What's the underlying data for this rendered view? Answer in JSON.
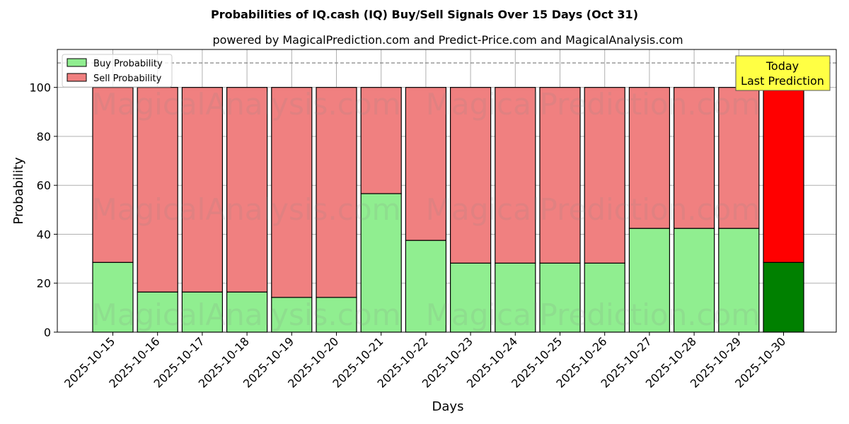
{
  "chart_data": {
    "type": "bar",
    "stacked": true,
    "title": "Probabilities of IQ.cash (IQ) Buy/Sell Signals Over 15 Days (Oct 31)",
    "subtitle": "powered by MagicalPrediction.com and Predict-Price.com and MagicalAnalysis.com",
    "xlabel": "Days",
    "ylabel": "Probability",
    "ylim": [
      0,
      115.5
    ],
    "yticks": [
      0,
      20,
      40,
      60,
      80,
      100
    ],
    "reference_line": 110,
    "grid": true,
    "legend_placement": "top-left",
    "categories": [
      "2025-10-15",
      "2025-10-16",
      "2025-10-17",
      "2025-10-18",
      "2025-10-19",
      "2025-10-20",
      "2025-10-21",
      "2025-10-22",
      "2025-10-23",
      "2025-10-24",
      "2025-10-25",
      "2025-10-26",
      "2025-10-27",
      "2025-10-28",
      "2025-10-29",
      "2025-10-30"
    ],
    "series": [
      {
        "name": "Buy Probability",
        "color": "#90ee90",
        "highlight_color": "#008000",
        "values": [
          28.5,
          16.4,
          16.4,
          16.4,
          14.2,
          14.2,
          56.6,
          37.5,
          28.2,
          28.2,
          28.2,
          28.2,
          42.4,
          42.4,
          42.4,
          28.5
        ]
      },
      {
        "name": "Sell Probability",
        "color": "#f08080",
        "highlight_color": "#ff0000",
        "values": [
          71.5,
          83.6,
          83.6,
          83.6,
          85.8,
          85.8,
          43.4,
          62.5,
          71.8,
          71.8,
          71.8,
          71.8,
          57.6,
          57.6,
          57.6,
          71.5
        ]
      }
    ],
    "annotation": {
      "line1": "Today",
      "line2": "Last Prediction",
      "color": "#ffff44"
    },
    "watermarks": [
      "MagicalAnalysis.com",
      "MagicalPrediction.com"
    ]
  }
}
